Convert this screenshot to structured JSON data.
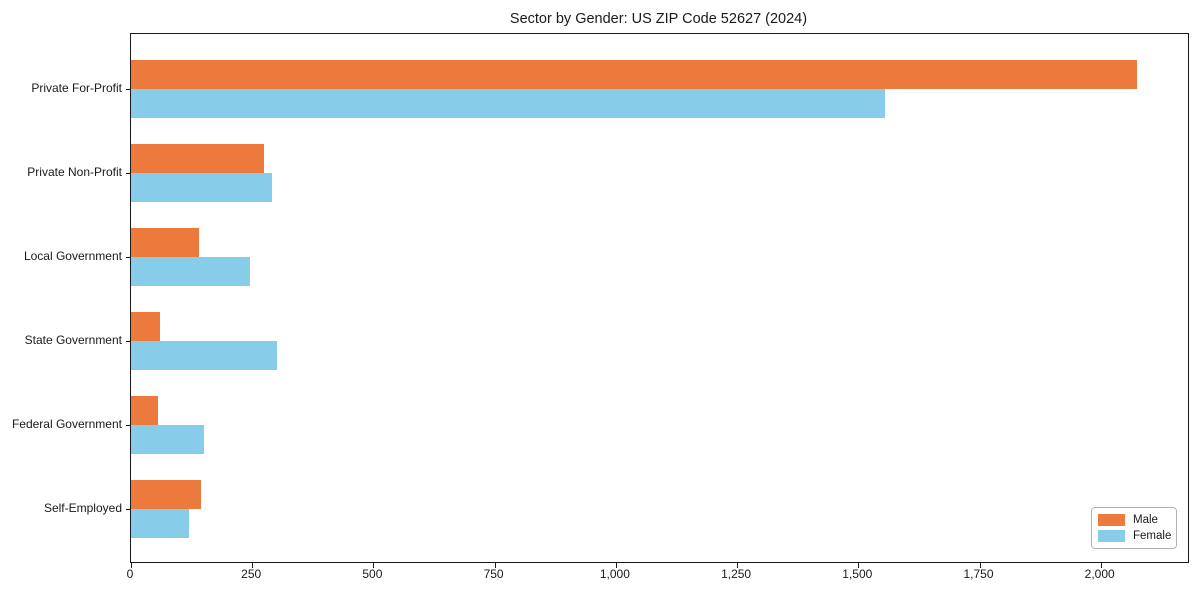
{
  "title": "Sector by Gender: US ZIP Code 52627 (2024)",
  "chart_data": {
    "type": "bar",
    "orientation": "horizontal",
    "title": "Sector by Gender: US ZIP Code 52627 (2024)",
    "categories": [
      "Private For-Profit",
      "Private Non-Profit",
      "Local Government",
      "State Government",
      "Federal Government",
      "Self-Employed"
    ],
    "series": [
      {
        "name": "Male",
        "color": "#ec7a3c",
        "values": [
          2075,
          275,
          140,
          60,
          55,
          145
        ]
      },
      {
        "name": "Female",
        "color": "#87cde9",
        "values": [
          1555,
          290,
          245,
          300,
          150,
          120
        ]
      }
    ],
    "xlabel": "",
    "ylabel": "",
    "xlim": [
      0,
      2180
    ],
    "x_ticks": [
      0,
      250,
      500,
      750,
      1000,
      1250,
      1500,
      1750,
      2000
    ],
    "x_tick_labels": [
      "0",
      "250",
      "500",
      "750",
      "1,000",
      "1,250",
      "1,500",
      "1,750",
      "2,000"
    ],
    "grid": false,
    "legend_position": "lower right"
  },
  "legend": {
    "items": [
      {
        "label": "Male",
        "color": "#ec7a3c"
      },
      {
        "label": "Female",
        "color": "#87cde9"
      }
    ]
  },
  "colors": {
    "male": "#ec7a3c",
    "female": "#87cde9",
    "axis": "#1a1a1a",
    "legend_border": "#b3b3b3"
  }
}
